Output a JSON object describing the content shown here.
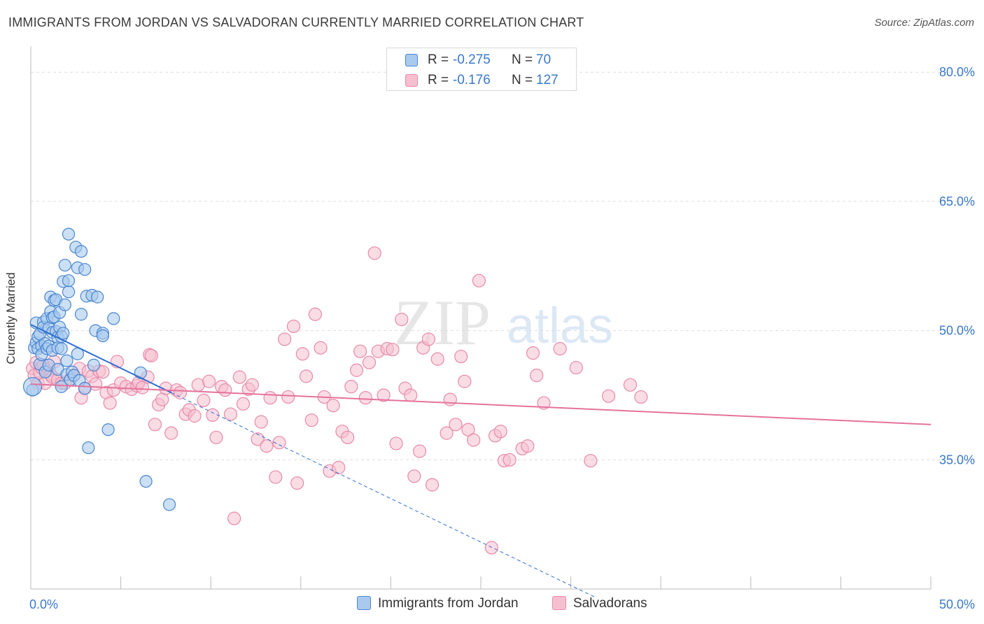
{
  "title": "IMMIGRANTS FROM JORDAN VS SALVADORAN CURRENTLY MARRIED CORRELATION CHART",
  "source": "Source: ZipAtlas.com",
  "watermark": {
    "zip": "ZIP",
    "atlas": "atlas"
  },
  "legend": {
    "rows": [
      {
        "r_label": "R =",
        "r_value": "-0.275",
        "n_label": "N =",
        "n_value": "70"
      },
      {
        "r_label": "R =",
        "r_value": "-0.176",
        "n_label": "N =",
        "n_value": "127"
      }
    ]
  },
  "colors": {
    "jordan_fill": "#a9c9ee",
    "jordan_stroke": "#4a86d0",
    "jordan_line": "#2f6fcf",
    "salvadoran_fill": "#f6bfd0",
    "salvadoran_stroke": "#e889a9",
    "salvadoran_line": "#e4739c",
    "tick_label": "#3a78c9",
    "grid": "#dcdcdc"
  },
  "chart_data": {
    "type": "scatter",
    "title": "IMMIGRANTS FROM JORDAN VS SALVADORAN CURRENTLY MARRIED CORRELATION CHART",
    "xlabel": "",
    "ylabel": "Currently Married",
    "xlim": [
      0,
      50
    ],
    "ylim": [
      20,
      82.7
    ],
    "x_tick_labels": [
      "0.0%",
      "50.0%"
    ],
    "y_ticks": [
      35,
      50,
      65,
      80
    ],
    "y_tick_labels": [
      "35.0%",
      "50.0%",
      "65.0%",
      "80.0%"
    ],
    "grid": true,
    "legend_position": "bottom",
    "series": [
      {
        "name": "Immigrants from Jordan",
        "R": -0.275,
        "N": 70,
        "trend": {
          "x0": 0,
          "y0": 50.7,
          "x1": 7.8,
          "y1": 42.8,
          "dashed_to": [
            31.4,
            19.0
          ]
        },
        "points": [
          [
            0.1,
            43.1
          ],
          [
            0.2,
            48.0
          ],
          [
            0.3,
            48.6
          ],
          [
            0.3,
            50.9
          ],
          [
            0.4,
            49.3
          ],
          [
            0.4,
            47.9
          ],
          [
            0.5,
            46.1
          ],
          [
            0.5,
            49.6
          ],
          [
            0.6,
            48.2
          ],
          [
            0.6,
            47.2
          ],
          [
            0.7,
            51.0
          ],
          [
            0.7,
            50.4
          ],
          [
            0.8,
            48.5
          ],
          [
            0.8,
            45.2
          ],
          [
            0.9,
            47.9
          ],
          [
            0.9,
            51.4
          ],
          [
            1.0,
            50.3
          ],
          [
            1.0,
            48.2
          ],
          [
            1.0,
            46.0
          ],
          [
            1.1,
            52.2
          ],
          [
            1.1,
            53.9
          ],
          [
            1.2,
            51.5
          ],
          [
            1.2,
            49.8
          ],
          [
            1.2,
            47.7
          ],
          [
            1.3,
            53.5
          ],
          [
            1.3,
            51.6
          ],
          [
            1.4,
            53.6
          ],
          [
            1.4,
            49.9
          ],
          [
            1.5,
            49.2
          ],
          [
            1.5,
            48.0
          ],
          [
            1.5,
            45.5
          ],
          [
            1.6,
            52.1
          ],
          [
            1.6,
            50.4
          ],
          [
            1.7,
            49.3
          ],
          [
            1.7,
            47.9
          ],
          [
            1.7,
            43.5
          ],
          [
            1.8,
            55.7
          ],
          [
            1.8,
            49.7
          ],
          [
            1.9,
            57.6
          ],
          [
            1.9,
            53.0
          ],
          [
            2.0,
            44.9
          ],
          [
            2.0,
            46.5
          ],
          [
            2.1,
            61.2
          ],
          [
            2.1,
            54.5
          ],
          [
            2.1,
            55.8
          ],
          [
            2.2,
            44.3
          ],
          [
            2.3,
            45.2
          ],
          [
            2.4,
            44.8
          ],
          [
            2.5,
            59.7
          ],
          [
            2.6,
            57.3
          ],
          [
            2.6,
            47.3
          ],
          [
            2.7,
            44.2
          ],
          [
            2.8,
            59.2
          ],
          [
            2.8,
            51.9
          ],
          [
            3.0,
            57.1
          ],
          [
            3.0,
            43.3
          ],
          [
            3.1,
            54.0
          ],
          [
            3.2,
            36.4
          ],
          [
            3.4,
            54.1
          ],
          [
            3.5,
            46.0
          ],
          [
            3.6,
            50.0
          ],
          [
            3.7,
            53.9
          ],
          [
            4.0,
            49.7
          ],
          [
            4.0,
            49.4
          ],
          [
            4.3,
            38.5
          ],
          [
            4.6,
            51.4
          ],
          [
            6.1,
            45.1
          ],
          [
            6.4,
            32.5
          ],
          [
            7.7,
            29.8
          ],
          [
            0.1,
            43.5
          ]
        ]
      },
      {
        "name": "Salvadorans",
        "R": -0.176,
        "N": 127,
        "trend": {
          "x0": 0,
          "y0": 43.8,
          "x1": 50,
          "y1": 39.1
        },
        "points": [
          [
            0.1,
            45.6
          ],
          [
            0.2,
            44.8
          ],
          [
            0.3,
            46.3
          ],
          [
            0.4,
            43.9
          ],
          [
            0.5,
            45.1
          ],
          [
            0.6,
            45.7
          ],
          [
            0.7,
            46.0
          ],
          [
            0.8,
            43.9
          ],
          [
            0.9,
            45.3
          ],
          [
            1.0,
            45.6
          ],
          [
            1.1,
            44.9
          ],
          [
            1.2,
            44.6
          ],
          [
            1.3,
            46.4
          ],
          [
            1.5,
            44.3
          ],
          [
            1.7,
            43.9
          ],
          [
            1.9,
            43.9
          ],
          [
            2.2,
            44.4
          ],
          [
            2.4,
            44.8
          ],
          [
            2.7,
            45.6
          ],
          [
            2.8,
            42.2
          ],
          [
            3.0,
            43.3
          ],
          [
            3.2,
            45.3
          ],
          [
            3.4,
            44.7
          ],
          [
            3.6,
            43.8
          ],
          [
            3.8,
            45.3
          ],
          [
            4.0,
            45.2
          ],
          [
            4.2,
            42.8
          ],
          [
            4.4,
            41.6
          ],
          [
            4.6,
            43.1
          ],
          [
            4.8,
            46.4
          ],
          [
            5.0,
            43.9
          ],
          [
            5.3,
            43.5
          ],
          [
            5.6,
            43.2
          ],
          [
            5.9,
            43.6
          ],
          [
            6.0,
            44.0
          ],
          [
            6.2,
            43.4
          ],
          [
            6.5,
            44.6
          ],
          [
            6.6,
            47.2
          ],
          [
            6.7,
            47.1
          ],
          [
            6.9,
            39.1
          ],
          [
            7.1,
            41.4
          ],
          [
            7.3,
            42.0
          ],
          [
            7.5,
            43.3
          ],
          [
            7.8,
            38.1
          ],
          [
            8.1,
            43.1
          ],
          [
            8.3,
            42.8
          ],
          [
            8.6,
            40.3
          ],
          [
            8.8,
            40.8
          ],
          [
            9.1,
            40.1
          ],
          [
            9.3,
            43.7
          ],
          [
            9.6,
            41.9
          ],
          [
            9.9,
            44.1
          ],
          [
            10.1,
            40.2
          ],
          [
            10.3,
            37.6
          ],
          [
            10.6,
            43.5
          ],
          [
            10.8,
            43.1
          ],
          [
            11.1,
            40.3
          ],
          [
            11.3,
            28.2
          ],
          [
            11.6,
            44.6
          ],
          [
            11.8,
            41.5
          ],
          [
            12.1,
            43.2
          ],
          [
            12.3,
            43.7
          ],
          [
            12.6,
            37.4
          ],
          [
            12.8,
            39.4
          ],
          [
            13.1,
            36.6
          ],
          [
            13.3,
            42.2
          ],
          [
            13.6,
            33.0
          ],
          [
            13.8,
            37.0
          ],
          [
            14.1,
            49.0
          ],
          [
            14.3,
            42.3
          ],
          [
            14.6,
            50.5
          ],
          [
            14.8,
            32.3
          ],
          [
            15.1,
            47.3
          ],
          [
            15.3,
            44.7
          ],
          [
            15.6,
            39.6
          ],
          [
            15.8,
            51.9
          ],
          [
            16.1,
            48.0
          ],
          [
            16.3,
            42.3
          ],
          [
            16.6,
            33.7
          ],
          [
            16.8,
            41.3
          ],
          [
            17.1,
            34.1
          ],
          [
            17.3,
            38.3
          ],
          [
            17.6,
            37.6
          ],
          [
            17.8,
            43.5
          ],
          [
            18.1,
            45.4
          ],
          [
            18.3,
            47.6
          ],
          [
            18.6,
            42.2
          ],
          [
            18.8,
            46.3
          ],
          [
            19.1,
            59.0
          ],
          [
            19.3,
            47.6
          ],
          [
            19.6,
            42.5
          ],
          [
            19.8,
            47.9
          ],
          [
            20.1,
            47.8
          ],
          [
            20.3,
            36.9
          ],
          [
            20.6,
            51.3
          ],
          [
            20.8,
            43.3
          ],
          [
            21.1,
            42.5
          ],
          [
            21.3,
            33.1
          ],
          [
            21.6,
            36.0
          ],
          [
            21.8,
            48.0
          ],
          [
            22.1,
            49.0
          ],
          [
            22.3,
            32.1
          ],
          [
            22.6,
            46.7
          ],
          [
            23.1,
            38.1
          ],
          [
            23.3,
            42.0
          ],
          [
            23.6,
            39.1
          ],
          [
            23.9,
            47.0
          ],
          [
            24.1,
            44.1
          ],
          [
            24.3,
            38.5
          ],
          [
            24.6,
            37.3
          ],
          [
            24.9,
            55.8
          ],
          [
            25.6,
            24.8
          ],
          [
            25.8,
            37.8
          ],
          [
            26.1,
            38.3
          ],
          [
            26.3,
            34.9
          ],
          [
            26.6,
            35.0
          ],
          [
            27.3,
            36.3
          ],
          [
            27.6,
            36.6
          ],
          [
            27.9,
            47.4
          ],
          [
            28.1,
            44.8
          ],
          [
            28.5,
            41.6
          ],
          [
            29.4,
            47.9
          ],
          [
            30.3,
            45.7
          ],
          [
            31.1,
            34.9
          ],
          [
            32.1,
            42.4
          ],
          [
            33.3,
            43.7
          ],
          [
            33.9,
            42.3
          ]
        ]
      }
    ]
  },
  "bottom_legend": {
    "items": [
      "Immigrants from Jordan",
      "Salvadorans"
    ]
  }
}
